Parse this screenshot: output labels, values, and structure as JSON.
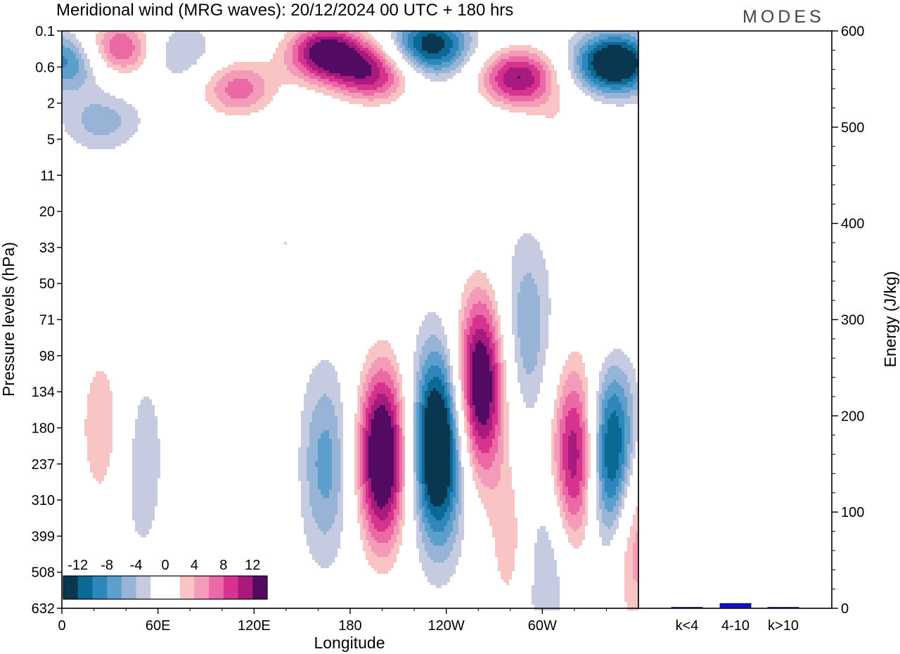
{
  "title": "Meridional wind (MRG waves):  20/12/2024  00 UTC  + 180 hrs",
  "logo": "MODES",
  "chart_data": [
    {
      "type": "heatmap",
      "xlabel": "Longitude",
      "ylabel": "Pressure levels (hPa)",
      "x_ticks": [
        "0",
        "60E",
        "120E",
        "180",
        "120W",
        "60W"
      ],
      "x_tick_degrees": [
        0,
        60,
        120,
        180,
        240,
        300
      ],
      "xlim": [
        0,
        360
      ],
      "y_levels": [
        "0.1",
        "0.6",
        "2",
        "5",
        "11",
        "20",
        "33",
        "50",
        "71",
        "98",
        "134",
        "180",
        "237",
        "310",
        "399",
        "508",
        "632"
      ],
      "colorbar": {
        "labels": [
          "-12",
          "-8",
          "-4",
          "0",
          "4",
          "8",
          "12"
        ],
        "levels": [
          -14,
          -12,
          -10,
          -8,
          -6,
          -4,
          -2,
          2,
          4,
          6,
          8,
          10,
          12,
          14
        ],
        "colors": [
          "#08374f",
          "#0a6a93",
          "#2e86bb",
          "#5d9fcc",
          "#97b4d7",
          "#c6cbe2",
          "#ffffff",
          "#ffffff",
          "#f9c4c4",
          "#f49bb9",
          "#eb6aa5",
          "#d6338f",
          "#a81a7e",
          "#530a62"
        ]
      },
      "features": [
        {
          "lon": 200,
          "lev": 11.8,
          "amp": 19
        },
        {
          "lon": 235,
          "lev": 11.5,
          "amp": -19
        },
        {
          "lon": 261,
          "lev": 9.8,
          "amp": 18
        },
        {
          "lon": 282,
          "lev": 14.3,
          "amp": 6
        },
        {
          "lon": 300,
          "lev": 14.8,
          "amp": -6
        },
        {
          "lon": 322,
          "lev": 11.8,
          "amp": 16
        },
        {
          "lon": 342,
          "lev": 11.8,
          "amp": -17
        },
        {
          "lon": 357,
          "lev": 14.0,
          "amp": 9
        },
        {
          "lon": 165,
          "lev": 12.0,
          "amp": -7
        },
        {
          "lon": 125,
          "lev": 11.8,
          "amp": 3
        },
        {
          "lon": 82,
          "lev": 12.8,
          "amp": 3
        },
        {
          "lon": 50,
          "lev": 12.0,
          "amp": -4
        },
        {
          "lon": 25,
          "lev": 11.0,
          "amp": 6
        },
        {
          "lon": 80,
          "lev": 0.6,
          "amp": 4
        },
        {
          "lon": 290,
          "lev": 8.3,
          "amp": -6
        },
        {
          "lon": 140,
          "lev": 5.9,
          "amp": 4
        },
        {
          "lon": 340,
          "lev": 7.2,
          "amp": 3
        },
        {
          "lon": 35,
          "lev": 0.5,
          "amp": 12
        },
        {
          "lon": 75,
          "lev": 0.6,
          "amp": -9
        },
        {
          "lon": 110,
          "lev": 1.6,
          "amp": 9
        },
        {
          "lon": 165,
          "lev": 0.6,
          "amp": 16
        },
        {
          "lon": 195,
          "lev": 1.2,
          "amp": 12
        },
        {
          "lon": 230,
          "lev": 0.4,
          "amp": -14
        },
        {
          "lon": 285,
          "lev": 1.3,
          "amp": 14
        },
        {
          "lon": 345,
          "lev": 0.9,
          "amp": -17
        },
        {
          "lon": 5,
          "lev": 0.8,
          "amp": -10
        },
        {
          "lon": 25,
          "lev": 2.5,
          "amp": -5
        },
        {
          "lon": 300,
          "lev": 2.9,
          "amp": -5
        },
        {
          "lon": 307,
          "lev": 2.7,
          "amp": 7
        },
        {
          "lon": 150,
          "lev": 3.6,
          "amp": 3
        },
        {
          "lon": 85,
          "lev": 3.7,
          "amp": 3
        }
      ]
    },
    {
      "type": "bar",
      "ylabel": "Energy (J/kg)",
      "categories": [
        "k<4",
        "4-10",
        "k>10"
      ],
      "values": [
        1,
        5,
        1
      ],
      "ylim": [
        0,
        600
      ],
      "y_ticks": [
        "0",
        "100",
        "200",
        "300",
        "400",
        "500",
        "600"
      ],
      "bar_color": "#1010cc"
    }
  ]
}
